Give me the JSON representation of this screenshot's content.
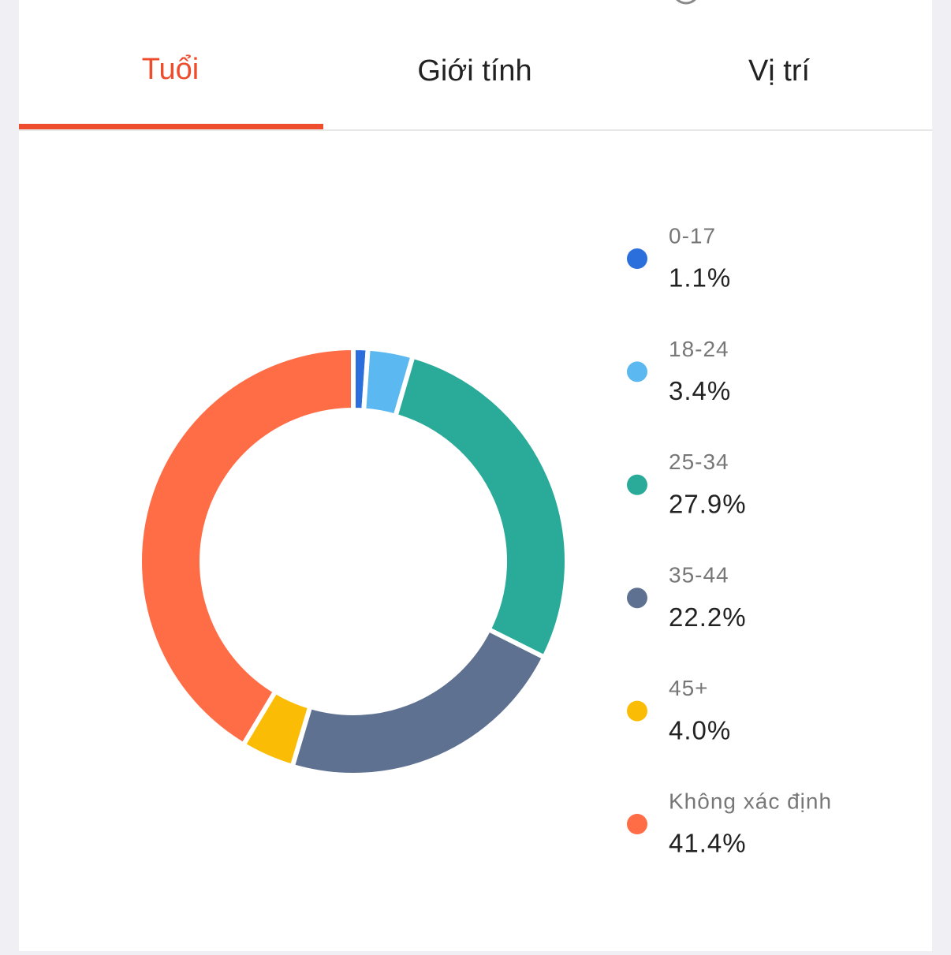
{
  "tabs": [
    "Tuổi",
    "Giới tính",
    "Vị trí"
  ],
  "chart_data": {
    "type": "pie",
    "categories": [
      "0-17",
      "18-24",
      "25-34",
      "35-44",
      "45+",
      "Không xác định"
    ],
    "values": [
      1.1,
      3.4,
      27.9,
      22.2,
      4.0,
      41.4
    ],
    "value_labels": [
      "1.1%",
      "3.4%",
      "27.9%",
      "22.2%",
      "4.0%",
      "41.4%"
    ],
    "colors": [
      "#2a6fdb",
      "#5bb8f0",
      "#2aab99",
      "#5f7191",
      "#fbbc05",
      "#ff6d47"
    ]
  }
}
